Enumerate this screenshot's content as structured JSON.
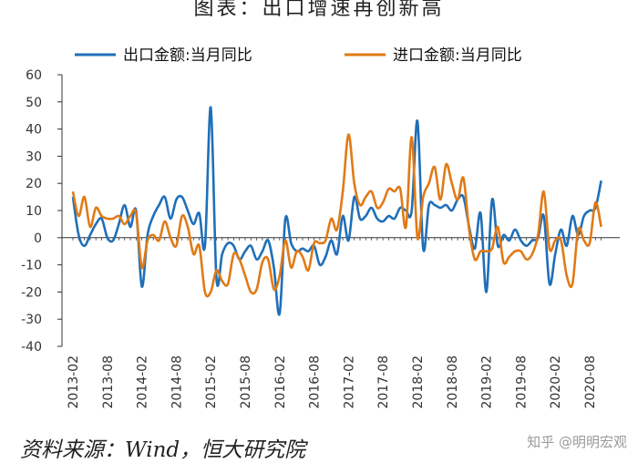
{
  "title": "图表：出口增速再创新高",
  "source": "资料来源：Wind，恒大研究院",
  "watermark": "知乎 @明明宏观",
  "chart_data": {
    "type": "line",
    "ylim": [
      -40,
      60
    ],
    "yticks": [
      60,
      50,
      40,
      30,
      20,
      10,
      0,
      -10,
      -20,
      -30,
      -40
    ],
    "x_tick_labels": [
      "2013-02",
      "2013-08",
      "2014-02",
      "2014-08",
      "2015-02",
      "2015-08",
      "2016-02",
      "2016-08",
      "2017-02",
      "2017-08",
      "2018-02",
      "2018-08",
      "2019-02",
      "2019-08",
      "2020-02",
      "2020-08"
    ],
    "legend_position": "top",
    "x": [
      "2013-02",
      "2013-03",
      "2013-04",
      "2013-05",
      "2013-06",
      "2013-07",
      "2013-08",
      "2013-09",
      "2013-10",
      "2013-11",
      "2013-12",
      "2014-01",
      "2014-02",
      "2014-03",
      "2014-04",
      "2014-05",
      "2014-06",
      "2014-07",
      "2014-08",
      "2014-09",
      "2014-10",
      "2014-11",
      "2014-12",
      "2015-01",
      "2015-02",
      "2015-03",
      "2015-04",
      "2015-05",
      "2015-06",
      "2015-07",
      "2015-08",
      "2015-09",
      "2015-10",
      "2015-11",
      "2015-12",
      "2016-01",
      "2016-02",
      "2016-03",
      "2016-04",
      "2016-05",
      "2016-06",
      "2016-07",
      "2016-08",
      "2016-09",
      "2016-10",
      "2016-11",
      "2016-12",
      "2017-01",
      "2017-02",
      "2017-03",
      "2017-04",
      "2017-05",
      "2017-06",
      "2017-07",
      "2017-08",
      "2017-09",
      "2017-10",
      "2017-11",
      "2017-12",
      "2018-01",
      "2018-02",
      "2018-03",
      "2018-04",
      "2018-05",
      "2018-06",
      "2018-07",
      "2018-08",
      "2018-09",
      "2018-10",
      "2018-11",
      "2018-12",
      "2019-01",
      "2019-02",
      "2019-03",
      "2019-04",
      "2019-05",
      "2019-06",
      "2019-07",
      "2019-08",
      "2019-09",
      "2019-10",
      "2019-11",
      "2019-12",
      "2020-01",
      "2020-02",
      "2020-03",
      "2020-04",
      "2020-05",
      "2020-06",
      "2020-07",
      "2020-08",
      "2020-09",
      "2020-10"
    ],
    "series": [
      {
        "name": "出口金额:当月同比",
        "color": "#1f6fb8",
        "values": [
          15,
          1,
          -3,
          1,
          5,
          7,
          0,
          -1,
          5,
          12,
          4,
          10,
          -18,
          1,
          8,
          12,
          15,
          7,
          14,
          15,
          10,
          5,
          9,
          -3,
          48,
          -15,
          -6,
          -2,
          -3,
          -8,
          -5,
          -3,
          -8,
          -5,
          -1,
          -11,
          -28,
          7,
          -2,
          -5,
          -4,
          -5,
          -3,
          -10,
          -7,
          -1,
          -6,
          8,
          -1,
          15,
          7,
          8,
          11,
          7,
          6,
          8,
          7,
          11,
          10,
          10,
          43,
          -4,
          12,
          12,
          11,
          12,
          10,
          14,
          15,
          4,
          -4,
          9,
          -20,
          14,
          -3,
          1,
          -1,
          3,
          -1,
          -3,
          -1,
          0,
          8,
          -17,
          -6,
          3,
          -3,
          8,
          1,
          8,
          10,
          11,
          21
        ]
      },
      {
        "name": "进口金额:当月同比",
        "color": "#e07a16",
        "values": [
          17,
          8,
          15,
          4,
          11,
          8,
          7,
          7,
          8,
          5,
          8,
          9,
          -11,
          -1,
          1,
          -1,
          6,
          0,
          -3,
          8,
          4,
          -6,
          -3,
          -20,
          -20,
          -12,
          -16,
          -17,
          -6,
          -8,
          -14,
          -20,
          -19,
          -9,
          -8,
          -19,
          -14,
          -1,
          -11,
          -5,
          -7,
          -12,
          -2,
          -2,
          -1,
          7,
          3,
          17,
          38,
          20,
          12,
          15,
          17,
          11,
          13,
          18,
          17,
          18,
          4,
          37,
          0,
          15,
          20,
          26,
          14,
          27,
          20,
          14,
          22,
          3,
          -8,
          -5,
          -5,
          -4,
          4,
          -9,
          -7,
          -5,
          -5,
          -8,
          -6,
          1,
          17,
          -4,
          -1,
          -1,
          -14,
          -17,
          3,
          -1,
          -2,
          13,
          4
        ]
      }
    ]
  }
}
